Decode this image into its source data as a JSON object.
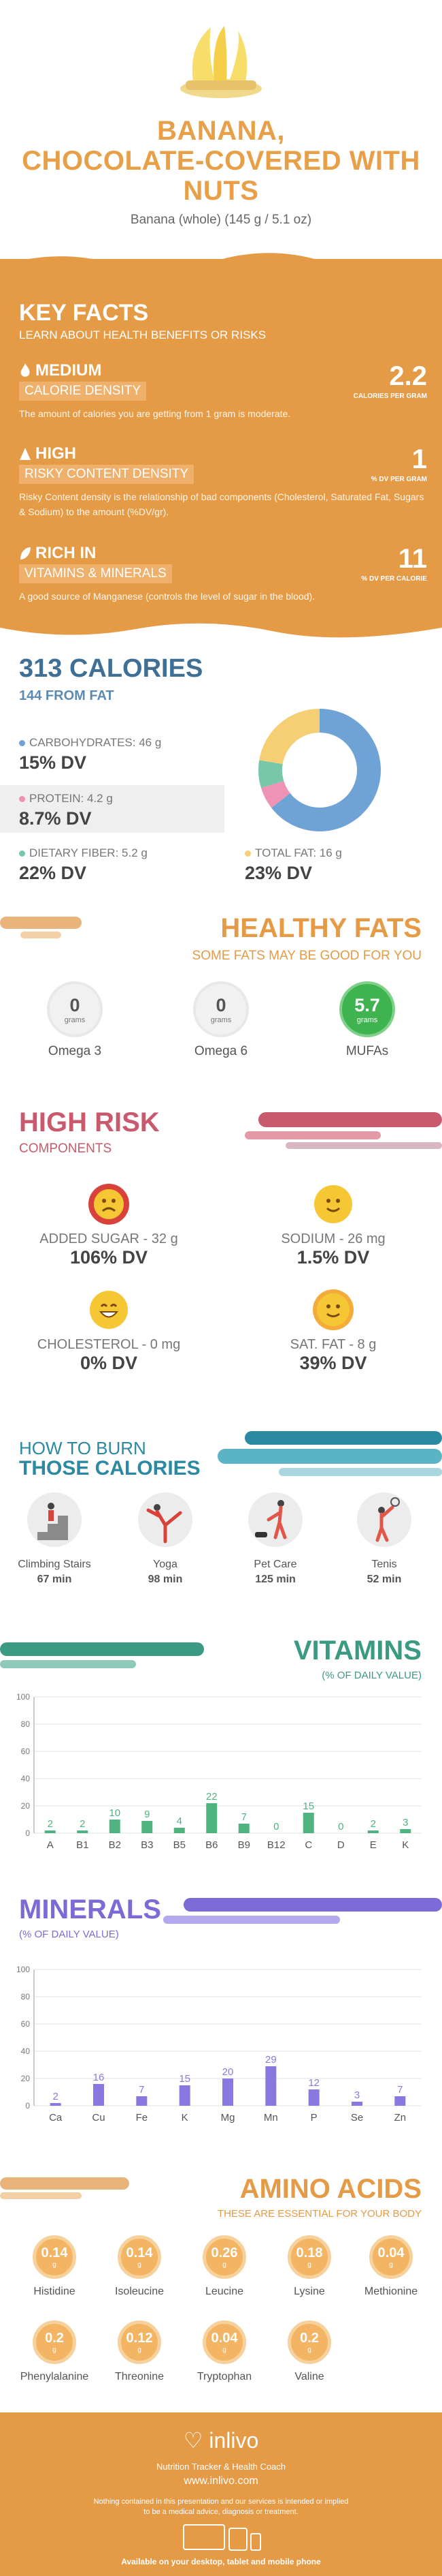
{
  "header": {
    "title_line1": "BANANA,",
    "title_line2": "CHOCOLATE-COVERED WITH",
    "title_line3": "NUTS",
    "serving": "Banana (whole) (145 g / 5.1 oz)"
  },
  "key_facts": {
    "heading": "KEY FACTS",
    "subheading": "LEARN ABOUT HEALTH BENEFITS OR RISKS",
    "items": [
      {
        "level": "MEDIUM",
        "name": "CALORIE DENSITY",
        "value": "2.2",
        "unit": "CALORIES PER GRAM",
        "desc": "The amount of calories you are getting from 1 gram is moderate."
      },
      {
        "level": "HIGH",
        "name": "RISKY CONTENT DENSITY",
        "value": "1",
        "unit": "% DV PER GRAM",
        "desc": "Risky Content density is the relationship of bad components (Cholesterol, Saturated Fat, Sugars & Sodium) to the amount (%DV/gr)."
      },
      {
        "level": "RICH  IN",
        "name": "VITAMINS & MINERALS",
        "value": "11",
        "unit": "% DV PER CALORIE",
        "desc": "A good source of Manganese (controls the level of sugar in the blood)."
      }
    ]
  },
  "calories": {
    "title": "313 CALORIES",
    "from_fat": "144 FROM FAT",
    "macros": [
      {
        "label": "CARBOHYDRATES: 46 g",
        "dv": "15% DV",
        "color": "#6fa3d6"
      },
      {
        "label": "PROTEIN: 4.2 g",
        "dv": "8.7% DV",
        "color": "#ee93b5"
      },
      {
        "label": "DIETARY FIBER: 5.2 g",
        "dv": "22% DV",
        "color": "#77c7a9"
      },
      {
        "label": "TOTAL FAT: 16 g",
        "dv": "23% DV",
        "color": "#f6cf74"
      }
    ]
  },
  "donut": {
    "segments": [
      {
        "name": "carbohydrates",
        "value": 46,
        "color": "#6fa3d6"
      },
      {
        "name": "protein",
        "value": 4.2,
        "color": "#ee93b5"
      },
      {
        "name": "fiber",
        "value": 5.2,
        "color": "#77c7a9"
      },
      {
        "name": "fat",
        "value": 16,
        "color": "#f6cf74"
      }
    ]
  },
  "healthy_fats": {
    "title": "HEALTHY FATS",
    "subtitle": "SOME FATS MAY BE GOOD FOR YOU",
    "items": [
      {
        "value": "0",
        "unit": "grams",
        "name": "Omega 3"
      },
      {
        "value": "0",
        "unit": "grams",
        "name": "Omega 6"
      },
      {
        "value": "5.7",
        "unit": "grams",
        "name": "MUFAs"
      }
    ]
  },
  "high_risk": {
    "title": "HIGH RISK",
    "subtitle": "COMPONENTS",
    "items": [
      {
        "label": "ADDED SUGAR - 32 g",
        "dv": "106% DV",
        "face": "sad-face-icon",
        "color": "#d9423a"
      },
      {
        "label": "SODIUM - 26 mg",
        "dv": "1.5% DV",
        "face": "happy-face-icon",
        "color": "#f6c735"
      },
      {
        "label": "CHOLESTEROL - 0 mg",
        "dv": "0% DV",
        "face": "grin-face-icon",
        "color": "#f6c735"
      },
      {
        "label": "SAT. FAT - 8 g",
        "dv": "39% DV",
        "face": "smile-face-icon",
        "color": "#f3ab3a"
      }
    ]
  },
  "burn": {
    "heading1": "HOW TO BURN",
    "heading2": "THOSE CALORIES",
    "activities": [
      {
        "name": "Climbing Stairs",
        "minutes": "67 min",
        "icon": "stairs-icon"
      },
      {
        "name": "Yoga",
        "minutes": "98 min",
        "icon": "yoga-icon"
      },
      {
        "name": "Pet Care",
        "minutes": "125 min",
        "icon": "dog-walking-icon"
      },
      {
        "name": "Tenis",
        "minutes": "52 min",
        "icon": "tennis-icon"
      }
    ]
  },
  "vitamins": {
    "title": "VITAMINS",
    "subtitle": "(% OF DAILY VALUE)"
  },
  "minerals": {
    "title": "MINERALS",
    "subtitle": "(% OF DAILY VALUE)"
  },
  "chart_data": [
    {
      "type": "bar",
      "categories": [
        "A",
        "B1",
        "B2",
        "B3",
        "B5",
        "B6",
        "B9",
        "B12",
        "C",
        "D",
        "E",
        "K"
      ],
      "values": [
        2,
        2,
        10,
        9,
        4,
        22,
        7,
        0,
        15,
        0,
        2,
        3
      ],
      "ylim": [
        0,
        100
      ],
      "yticks": [
        "0",
        "20",
        "40",
        "60",
        "80",
        "100"
      ],
      "color": "#4fb37f"
    },
    {
      "type": "bar",
      "categories": [
        "Ca",
        "Cu",
        "Fe",
        "K",
        "Mg",
        "Mn",
        "P",
        "Se",
        "Zn"
      ],
      "values": [
        2,
        16,
        7,
        15,
        20,
        29,
        12,
        3,
        7
      ],
      "ylim": [
        0,
        100
      ],
      "yticks": [
        "0",
        "20",
        "40",
        "60",
        "80",
        "100"
      ],
      "color": "#8a78e0"
    }
  ],
  "amino": {
    "title": "AMINO ACIDS",
    "subtitle": "THESE ARE ESSENTIAL FOR YOUR BODY",
    "items": [
      {
        "value": "0.14",
        "unit": "g",
        "name": "Histidine"
      },
      {
        "value": "0.14",
        "unit": "g",
        "name": "Isoleucine"
      },
      {
        "value": "0.26",
        "unit": "g",
        "name": "Leucine"
      },
      {
        "value": "0.18",
        "unit": "g",
        "name": "Lysine"
      },
      {
        "value": "0.04",
        "unit": "g",
        "name": "Methionine"
      },
      {
        "value": "0.2",
        "unit": "g",
        "name": "Phenylalanine"
      },
      {
        "value": "0.12",
        "unit": "g",
        "name": "Threonine"
      },
      {
        "value": "0.04",
        "unit": "g",
        "name": "Tryptophan"
      },
      {
        "value": "0.2",
        "unit": "g",
        "name": "Valine"
      }
    ]
  },
  "footer": {
    "brand": "inlivo",
    "tagline": "Nutrition Tracker & Health Coach",
    "url": "www.inlivo.com",
    "disclaimer1": "Nothing contained in this presentation and our services is intended or implied",
    "disclaimer2": "to be a medical advice, diagnosis or treatment.",
    "available": "Available on your desktop, tablet and mobile phone"
  }
}
